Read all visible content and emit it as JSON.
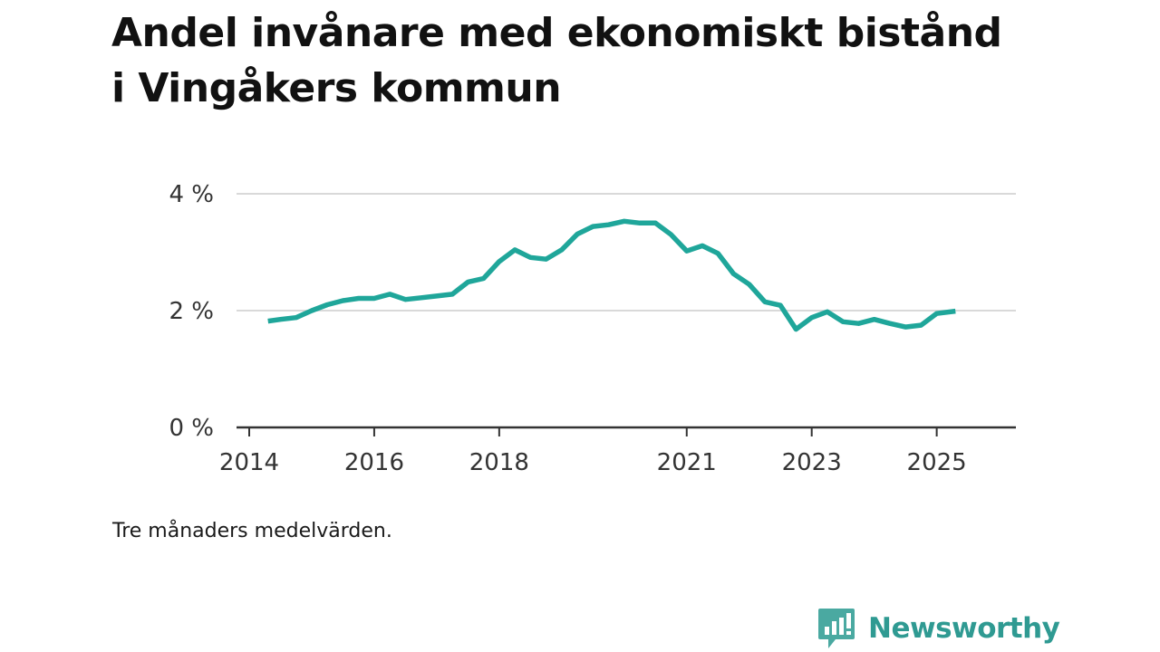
{
  "title": "Andel invånare med ekonomiskt bistånd i Vingåkers kommun",
  "note": "Tre månaders medelvärden.",
  "brand": {
    "name": "Newsworthy",
    "logo_icon": "newsworthy-logo-icon",
    "color": "#2f9a92"
  },
  "colors": {
    "line": "#1fa69a",
    "grid": "#d9d9d9",
    "axis": "#333333"
  },
  "chart_data": {
    "type": "line",
    "title": "Andel invånare med ekonomiskt bistånd i Vingåkers kommun",
    "xlabel": "",
    "ylabel": "",
    "ylim": [
      0,
      4
    ],
    "xlim": [
      2014,
      2025.9
    ],
    "grid": true,
    "y_ticks": [
      {
        "value": 0,
        "label": "0 %"
      },
      {
        "value": 2,
        "label": "2 %"
      },
      {
        "value": 4,
        "label": "4 %"
      }
    ],
    "x_ticks": [
      {
        "value": 2014,
        "label": "2014"
      },
      {
        "value": 2016,
        "label": "2016"
      },
      {
        "value": 2018,
        "label": "2018"
      },
      {
        "value": 2021,
        "label": "2021"
      },
      {
        "value": 2023,
        "label": "2023"
      },
      {
        "value": 2025,
        "label": "2025"
      }
    ],
    "series": [
      {
        "x": [
          2014.3,
          2014.5,
          2014.75,
          2015.0,
          2015.25,
          2015.5,
          2015.75,
          2016.0,
          2016.25,
          2016.5,
          2016.75,
          2017.0,
          2017.25,
          2017.5,
          2017.75,
          2018.0,
          2018.25,
          2018.5,
          2018.75,
          2019.0,
          2019.25,
          2019.5,
          2019.75,
          2020.0,
          2020.25,
          2020.5,
          2020.75,
          2021.0,
          2021.25,
          2021.5,
          2021.75,
          2022.0,
          2022.25,
          2022.5,
          2022.75,
          2023.0,
          2023.25,
          2023.5,
          2023.75,
          2024.0,
          2024.25,
          2024.5,
          2024.75,
          2025.0,
          2025.3
        ],
        "values": [
          1.82,
          1.85,
          1.88,
          2.0,
          2.1,
          2.17,
          2.21,
          2.21,
          2.28,
          2.19,
          2.22,
          2.25,
          2.28,
          2.49,
          2.55,
          2.84,
          3.04,
          2.91,
          2.88,
          3.04,
          3.31,
          3.44,
          3.47,
          3.53,
          3.5,
          3.5,
          3.3,
          3.02,
          3.11,
          2.98,
          2.63,
          2.45,
          2.15,
          2.09,
          1.68,
          1.88,
          1.98,
          1.81,
          1.78,
          1.85,
          1.78,
          1.72,
          1.75,
          1.95,
          1.99
        ]
      }
    ]
  }
}
